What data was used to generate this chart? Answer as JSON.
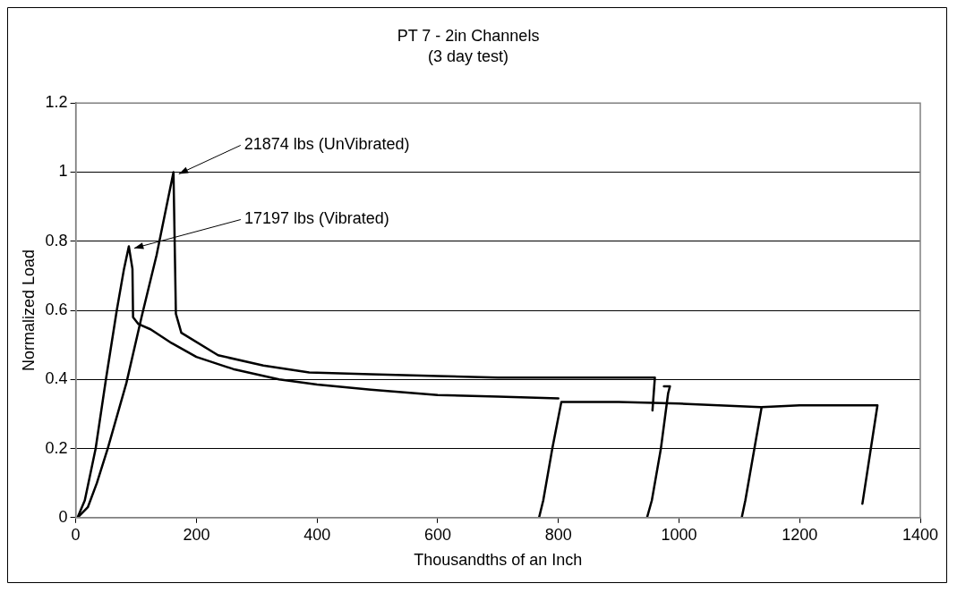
{
  "chart_data": {
    "type": "line",
    "title": "PT 7 - 2in Channels",
    "subtitle": "(3 day test)",
    "xlabel": "Thousandths of an Inch",
    "ylabel": "Normalized Load",
    "xlim": [
      0,
      1400
    ],
    "xticks": [
      0,
      200,
      400,
      600,
      800,
      1000,
      1200,
      1400
    ],
    "ylim": [
      0,
      1.2
    ],
    "yticks": [
      0,
      0.2,
      0.4,
      0.6,
      0.8,
      1,
      1.2
    ],
    "grid": "y",
    "legend": false,
    "marker": "none",
    "line_style": "solid",
    "annotations": [
      {
        "text": "21874 lbs (UnVibrated)",
        "x": 162,
        "y": 1
      },
      {
        "text": "17197 lbs (Vibrated)",
        "x": 88,
        "y": 0.785
      }
    ],
    "series": [
      {
        "color": "#000000",
        "x": [
          3,
          20,
          35,
          53,
          84,
          109,
          134,
          162,
          166,
          175,
          236,
          311,
          387,
          489,
          600,
          700,
          800,
          900,
          960,
          956
        ],
        "values": [
          0,
          0.03,
          0.1,
          0.2,
          0.39,
          0.58,
          0.76,
          1,
          0.59,
          0.535,
          0.47,
          0.44,
          0.42,
          0.415,
          0.41,
          0.405,
          0.405,
          0.405,
          0.405,
          0.31
        ]
      },
      {
        "color": "#000000",
        "x": [
          947,
          955,
          970,
          982,
          985,
          975
        ],
        "values": [
          0,
          0.05,
          0.2,
          0.36,
          0.38,
          0.38
        ]
      },
      {
        "color": "#000000",
        "x": [
          3,
          15,
          33,
          50,
          68,
          80,
          88,
          94,
          95,
          104,
          124,
          159,
          200,
          261,
          337,
          400,
          489,
          600,
          700,
          800
        ],
        "values": [
          0,
          0.05,
          0.2,
          0.4,
          0.6,
          0.72,
          0.785,
          0.72,
          0.58,
          0.56,
          0.545,
          0.505,
          0.465,
          0.43,
          0.4,
          0.385,
          0.37,
          0.355,
          0.35,
          0.345
        ]
      },
      {
        "color": "#000000",
        "x": [
          768,
          775,
          790,
          805,
          900,
          1000,
          1135
        ],
        "values": [
          0,
          0.05,
          0.2,
          0.335,
          0.335,
          0.33,
          0.32
        ]
      },
      {
        "color": "#000000",
        "x": [
          1104,
          1110,
          1125,
          1137,
          1200,
          1329,
          1304
        ],
        "values": [
          0,
          0.05,
          0.2,
          0.32,
          0.325,
          0.325,
          0.04
        ]
      }
    ]
  }
}
